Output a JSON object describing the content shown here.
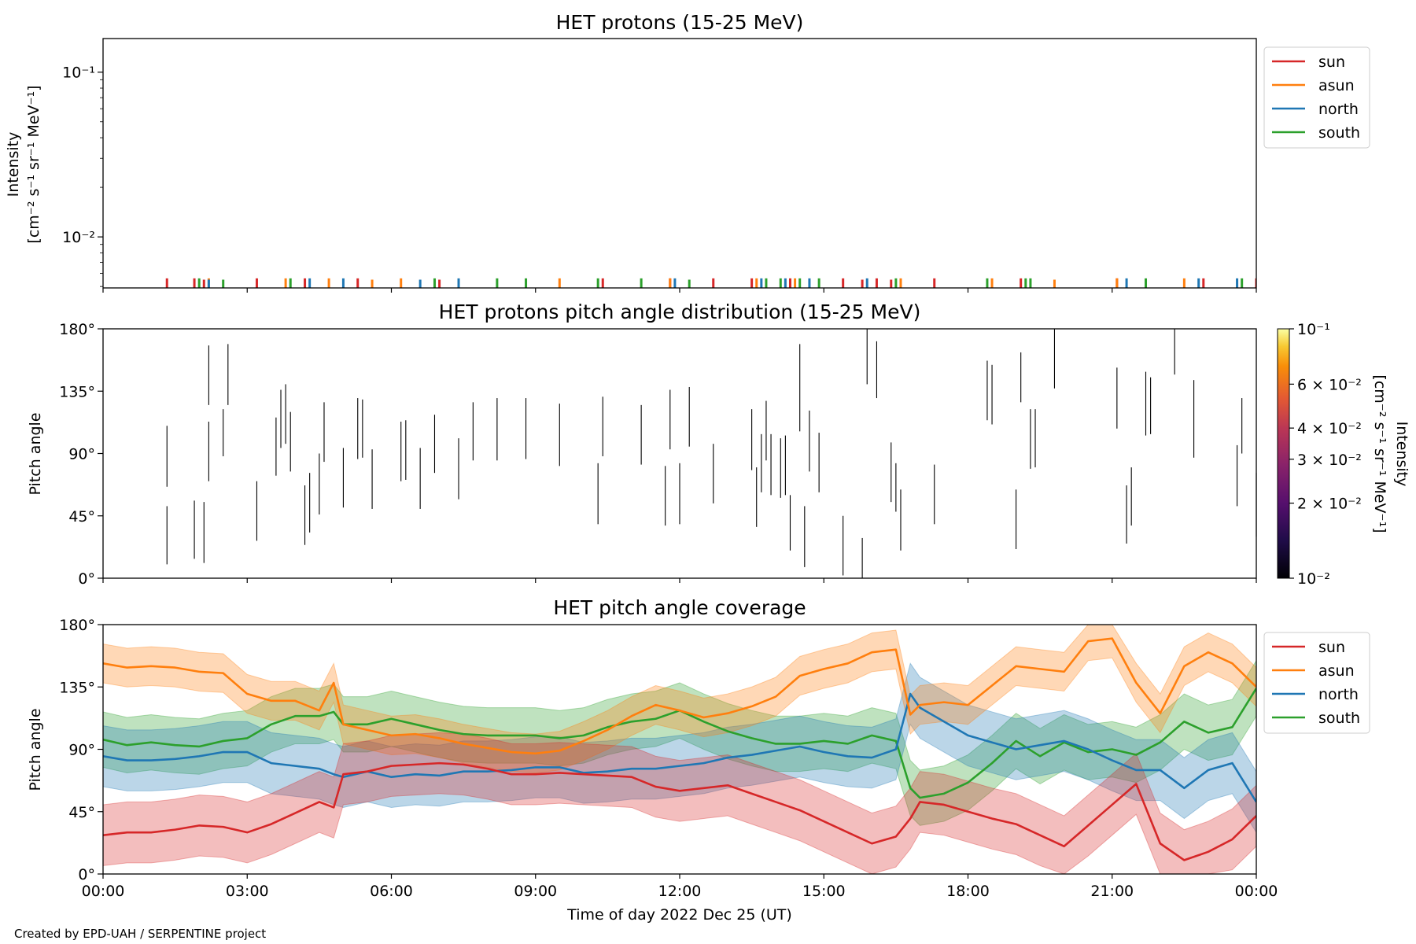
{
  "footer": {
    "credit": "Created by EPD-UAH / SERPENTINE project"
  },
  "colors": {
    "sun": "#d62728",
    "asun": "#ff7f0e",
    "north": "#1f77b4",
    "south": "#2ca02c"
  },
  "x_axis": {
    "label": "Time of day 2022 Dec 25 (UT)",
    "ticks": [
      {
        "h": 0,
        "label": "00:00"
      },
      {
        "h": 3,
        "label": "03:00"
      },
      {
        "h": 6,
        "label": "06:00"
      },
      {
        "h": 9,
        "label": "09:00"
      },
      {
        "h": 12,
        "label": "12:00"
      },
      {
        "h": 15,
        "label": "15:00"
      },
      {
        "h": 18,
        "label": "18:00"
      },
      {
        "h": 21,
        "label": "21:00"
      },
      {
        "h": 24,
        "label": "00:00"
      }
    ]
  },
  "chart_data": [
    {
      "type": "bar",
      "title": "HET protons (15-25 MeV)",
      "ylabel": "Intensity",
      "yunits": "[cm⁻² s⁻¹ sr⁻¹ MeV⁻¹]",
      "yscale": "log",
      "ylim": [
        0.0049,
        0.16
      ],
      "yticks": [
        {
          "v": 0.1,
          "label": "10⁻¹"
        },
        {
          "v": 0.01,
          "label": "10⁻²"
        }
      ],
      "legend": {
        "position": "right",
        "entries": [
          "sun",
          "asun",
          "north",
          "south"
        ]
      },
      "series": [
        {
          "name": "sun",
          "x": [
            1.33,
            1.9,
            2.1,
            3.2,
            4.2,
            5.3,
            7.0,
            10.4,
            11.8,
            12.7,
            13.5,
            14.3,
            15.4,
            15.8,
            16.1,
            16.4,
            17.3,
            19.1,
            21.1,
            22.9,
            24.0
          ],
          "values": [
            0.0056,
            0.0056,
            0.0055,
            0.0056,
            0.0056,
            0.0056,
            0.0055,
            0.0056,
            0.0056,
            0.0056,
            0.0056,
            0.0056,
            0.0056,
            0.0055,
            0.0056,
            0.0055,
            0.0056,
            0.0056,
            0.0056,
            0.0056,
            0.0056
          ]
        },
        {
          "name": "asun",
          "x": [
            2.2,
            3.8,
            4.7,
            5.6,
            6.2,
            9.5,
            11.8,
            13.6,
            14.4,
            16.6,
            18.5,
            19.8,
            21.1,
            22.5
          ],
          "values": [
            0.0056,
            0.0056,
            0.0056,
            0.0055,
            0.0056,
            0.0056,
            0.0056,
            0.0056,
            0.0056,
            0.0056,
            0.0056,
            0.0055,
            0.0056,
            0.0056
          ]
        },
        {
          "name": "north",
          "x": [
            2.2,
            4.3,
            5.0,
            6.6,
            7.4,
            11.9,
            13.7,
            14.2,
            14.7,
            15.9,
            21.3,
            22.8,
            23.6
          ],
          "values": [
            0.0055,
            0.0056,
            0.0056,
            0.0055,
            0.0056,
            0.0056,
            0.0056,
            0.0056,
            0.0056,
            0.0056,
            0.0056,
            0.0056,
            0.0056
          ]
        },
        {
          "name": "south",
          "x": [
            2.0,
            2.5,
            3.9,
            6.9,
            8.2,
            8.8,
            10.3,
            11.2,
            12.2,
            13.8,
            14.1,
            14.5,
            14.9,
            16.5,
            18.4,
            19.2,
            19.3,
            21.7,
            23.7
          ],
          "values": [
            0.0056,
            0.0055,
            0.0056,
            0.0056,
            0.0056,
            0.0056,
            0.0056,
            0.0056,
            0.0055,
            0.0056,
            0.0056,
            0.0056,
            0.0056,
            0.0056,
            0.0056,
            0.0056,
            0.0056,
            0.0056,
            0.0056
          ]
        }
      ]
    },
    {
      "type": "heatmap",
      "title": "HET protons pitch angle distribution (15-25 MeV)",
      "ylabel": "Pitch angle",
      "ylim": [
        0,
        180
      ],
      "yticks": [
        {
          "v": 0,
          "label": "0°"
        },
        {
          "v": 45,
          "label": "45°"
        },
        {
          "v": 90,
          "label": "90°"
        },
        {
          "v": 135,
          "label": "135°"
        },
        {
          "v": 180,
          "label": "180°"
        }
      ],
      "colorbar": {
        "label": "Intensity",
        "units": "[cm⁻² s⁻¹ sr⁻¹ MeV⁻¹]",
        "range": [
          0.01,
          0.1
        ],
        "scale": "log",
        "colormap": "inferno",
        "ticks": [
          {
            "v": 0.1,
            "label": "10⁻¹"
          },
          {
            "v": 0.06,
            "label": "6 × 10⁻²"
          },
          {
            "v": 0.04,
            "label": "4 × 10⁻²"
          },
          {
            "v": 0.03,
            "label": "3 × 10⁻²"
          },
          {
            "v": 0.02,
            "label": "2 × 10⁻²"
          },
          {
            "v": 0.01,
            "label": "10⁻²"
          }
        ]
      },
      "segments": [
        [
          1.33,
          66,
          110
        ],
        [
          1.33,
          10,
          52
        ],
        [
          1.9,
          14,
          56
        ],
        [
          2.1,
          11,
          55
        ],
        [
          2.2,
          125,
          168
        ],
        [
          2.2,
          70,
          113
        ],
        [
          2.5,
          88,
          122
        ],
        [
          2.6,
          125,
          169
        ],
        [
          3.2,
          27,
          70
        ],
        [
          3.6,
          74,
          116
        ],
        [
          3.7,
          94,
          136
        ],
        [
          3.8,
          97,
          140
        ],
        [
          3.9,
          77,
          120
        ],
        [
          4.2,
          24,
          67
        ],
        [
          4.3,
          33,
          76
        ],
        [
          4.5,
          46,
          90
        ],
        [
          4.6,
          84,
          127
        ],
        [
          5.0,
          51,
          94
        ],
        [
          5.3,
          86,
          130
        ],
        [
          5.4,
          87,
          129
        ],
        [
          5.6,
          50,
          93
        ],
        [
          6.2,
          70,
          113
        ],
        [
          6.3,
          71,
          114
        ],
        [
          6.6,
          50,
          94
        ],
        [
          6.9,
          76,
          118
        ],
        [
          7.4,
          57,
          101
        ],
        [
          7.7,
          85,
          127
        ],
        [
          8.2,
          85,
          130
        ],
        [
          8.8,
          86,
          130
        ],
        [
          9.5,
          81,
          126
        ],
        [
          10.3,
          39,
          83
        ],
        [
          10.4,
          88,
          131
        ],
        [
          11.2,
          82,
          125
        ],
        [
          11.7,
          38,
          81
        ],
        [
          11.8,
          93,
          136
        ],
        [
          12.0,
          39,
          83
        ],
        [
          12.2,
          95,
          138
        ],
        [
          12.7,
          54,
          97
        ],
        [
          13.5,
          78,
          122
        ],
        [
          13.6,
          37,
          80
        ],
        [
          13.7,
          62,
          104
        ],
        [
          13.8,
          85,
          128
        ],
        [
          13.9,
          60,
          104
        ],
        [
          14.1,
          58,
          101
        ],
        [
          14.2,
          60,
          103
        ],
        [
          14.3,
          20,
          60
        ],
        [
          14.5,
          106,
          169
        ],
        [
          14.6,
          8,
          52
        ],
        [
          14.7,
          77,
          121
        ],
        [
          14.9,
          62,
          105
        ],
        [
          15.4,
          2,
          45
        ],
        [
          15.8,
          0,
          29
        ],
        [
          15.9,
          140,
          180
        ],
        [
          16.1,
          130,
          171
        ],
        [
          16.4,
          55,
          98
        ],
        [
          16.5,
          48,
          83
        ],
        [
          16.6,
          20,
          64
        ],
        [
          17.3,
          39,
          82
        ],
        [
          18.4,
          114,
          157
        ],
        [
          18.5,
          111,
          154
        ],
        [
          19.0,
          21,
          64
        ],
        [
          19.1,
          127,
          163
        ],
        [
          19.3,
          79,
          122
        ],
        [
          19.4,
          80,
          122
        ],
        [
          19.8,
          137,
          180
        ],
        [
          21.1,
          108,
          152
        ],
        [
          21.3,
          25,
          67
        ],
        [
          21.4,
          38,
          80
        ],
        [
          21.7,
          103,
          149
        ],
        [
          21.8,
          104,
          145
        ],
        [
          22.3,
          147,
          180
        ],
        [
          22.7,
          87,
          143
        ],
        [
          23.6,
          52,
          96
        ],
        [
          23.7,
          90,
          130
        ],
        [
          24.0,
          30,
          76
        ]
      ]
    },
    {
      "type": "area",
      "title": "HET pitch angle coverage",
      "ylabel": "Pitch angle",
      "ylim": [
        0,
        180
      ],
      "yticks": [
        {
          "v": 0,
          "label": "0°"
        },
        {
          "v": 45,
          "label": "45°"
        },
        {
          "v": 90,
          "label": "90°"
        },
        {
          "v": 135,
          "label": "135°"
        },
        {
          "v": 180,
          "label": "180°"
        }
      ],
      "legend": {
        "position": "right",
        "entries": [
          "sun",
          "asun",
          "north",
          "south"
        ]
      },
      "x": [
        0,
        0.5,
        1,
        1.5,
        2,
        2.5,
        3,
        3.5,
        4,
        4.5,
        4.8,
        5,
        5.5,
        6,
        6.5,
        7,
        7.5,
        8,
        8.5,
        9,
        9.5,
        10,
        10.5,
        11,
        11.5,
        12,
        12.5,
        13,
        13.5,
        14,
        14.5,
        15,
        15.5,
        16,
        16.5,
        16.8,
        17,
        17.5,
        18,
        18.5,
        19,
        19.5,
        20,
        20.5,
        21,
        21.5,
        22,
        22.5,
        23,
        23.5,
        24
      ],
      "series": [
        {
          "name": "sun",
          "values": [
            28,
            30,
            30,
            32,
            35,
            34,
            30,
            36,
            44,
            52,
            48,
            72,
            74,
            78,
            79,
            80,
            79,
            76,
            72,
            72,
            73,
            72,
            71,
            70,
            63,
            60,
            62,
            64,
            58,
            52,
            46,
            38,
            30,
            22,
            27,
            40,
            52,
            50,
            45,
            40,
            36,
            28,
            20,
            35,
            50,
            65,
            22,
            10,
            16,
            25,
            42
          ],
          "halfwidth": 22
        },
        {
          "name": "asun",
          "values": [
            152,
            149,
            150,
            149,
            146,
            145,
            130,
            125,
            125,
            118,
            138,
            108,
            104,
            100,
            101,
            98,
            94,
            91,
            88,
            87,
            89,
            96,
            104,
            114,
            122,
            118,
            113,
            116,
            121,
            128,
            143,
            148,
            152,
            160,
            162,
            115,
            122,
            124,
            122,
            136,
            150,
            148,
            146,
            168,
            170,
            138,
            116,
            150,
            160,
            152,
            135
          ],
          "halfwidth": 14
        },
        {
          "name": "north",
          "values": [
            85,
            82,
            82,
            83,
            85,
            88,
            88,
            80,
            78,
            76,
            72,
            70,
            74,
            70,
            72,
            71,
            74,
            74,
            75,
            77,
            77,
            73,
            74,
            76,
            76,
            78,
            80,
            84,
            86,
            89,
            92,
            88,
            85,
            84,
            90,
            130,
            120,
            110,
            100,
            95,
            90,
            93,
            96,
            90,
            82,
            75,
            75,
            62,
            75,
            80,
            52
          ],
          "halfwidth": 22
        },
        {
          "name": "south",
          "values": [
            97,
            93,
            95,
            93,
            92,
            96,
            98,
            108,
            114,
            114,
            117,
            108,
            108,
            112,
            108,
            104,
            101,
            100,
            100,
            100,
            98,
            100,
            106,
            110,
            112,
            118,
            110,
            103,
            98,
            94,
            94,
            96,
            94,
            100,
            96,
            62,
            55,
            58,
            66,
            80,
            96,
            85,
            95,
            88,
            90,
            86,
            95,
            110,
            102,
            106,
            134
          ],
          "halfwidth": 20
        }
      ]
    }
  ]
}
